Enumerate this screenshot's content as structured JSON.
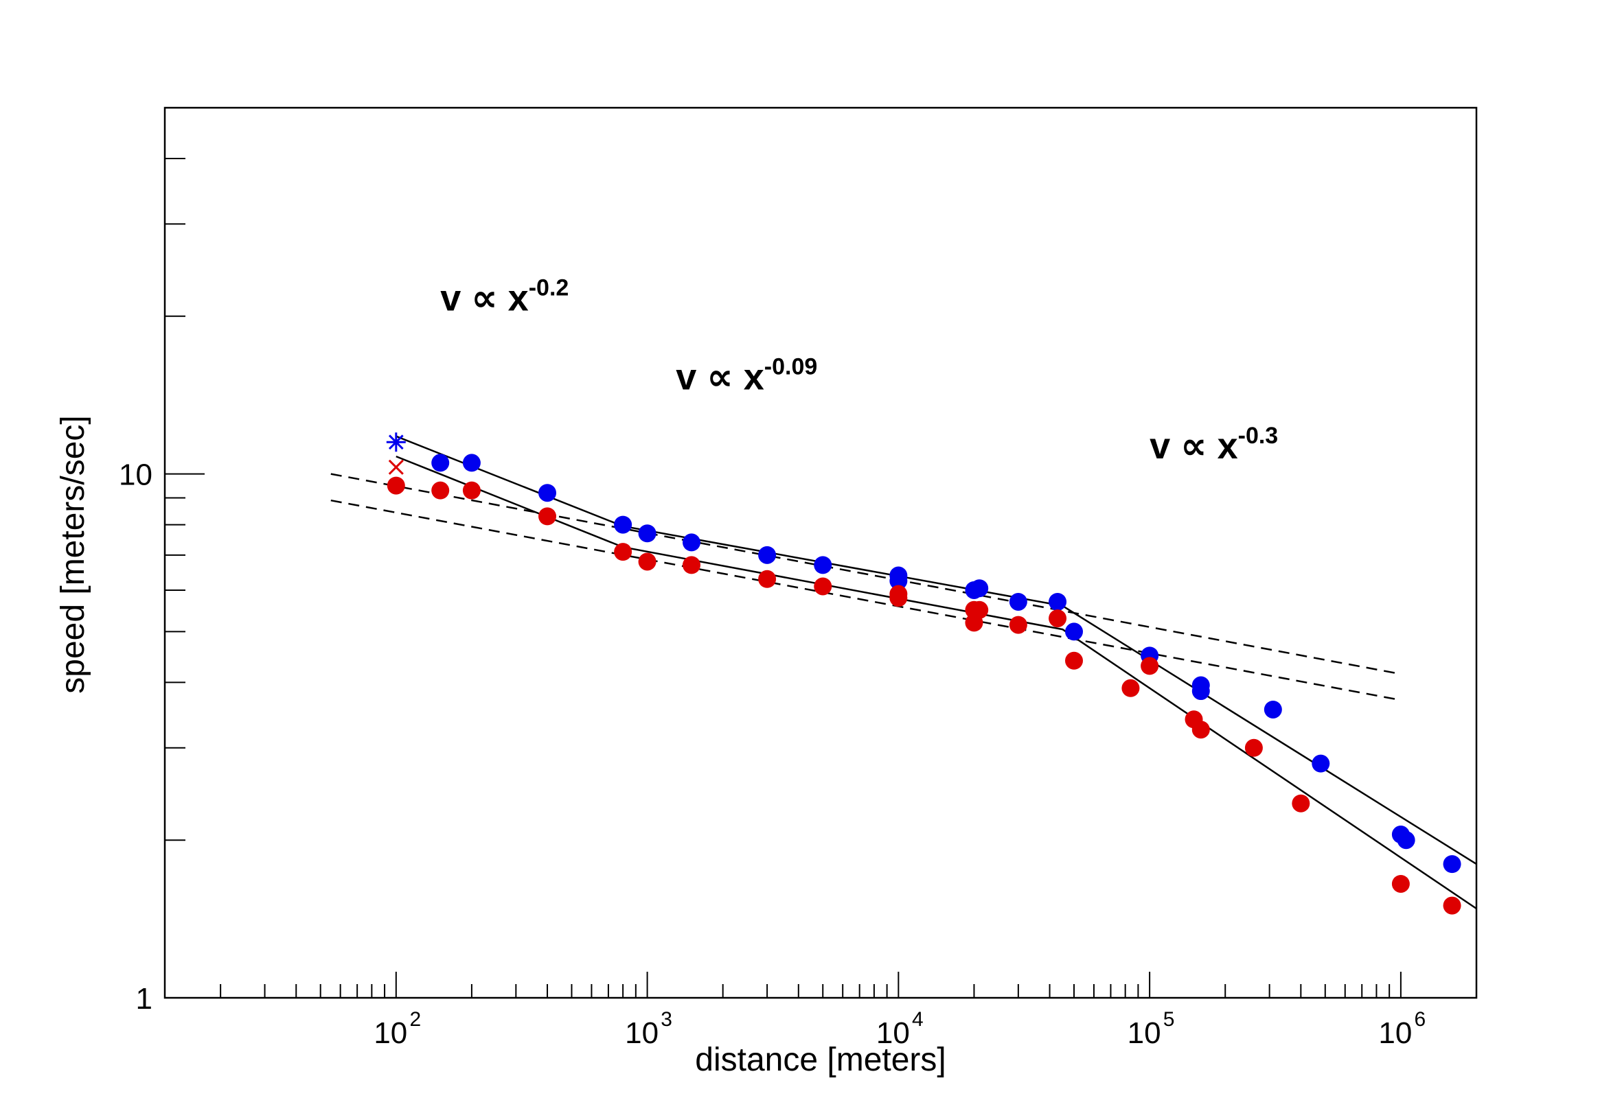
{
  "chart_data": {
    "type": "scatter",
    "title": "",
    "xlabel": "distance [meters]",
    "ylabel": "speed [meters/sec]",
    "xscale": "log",
    "yscale": "log",
    "xlim": [
      12,
      2000000
    ],
    "ylim": [
      1,
      50
    ],
    "x_ticks": [
      {
        "value": 100,
        "base": "10",
        "exp": "2"
      },
      {
        "value": 1000,
        "base": "10",
        "exp": "3"
      },
      {
        "value": 10000,
        "base": "10",
        "exp": "4"
      },
      {
        "value": 100000,
        "base": "10",
        "exp": "5"
      },
      {
        "value": 1000000,
        "base": "10",
        "exp": "6"
      }
    ],
    "y_ticks": [
      {
        "value": 1,
        "label": "1"
      },
      {
        "value": 10,
        "label": "10"
      }
    ],
    "grid": false,
    "legend": "none",
    "colors": {
      "blue": "#0000ee",
      "red": "#dd0000",
      "fit": "#000000"
    },
    "series": [
      {
        "color": "blue",
        "marker": "circle",
        "points": [
          [
            150,
            10.5
          ],
          [
            200,
            10.5
          ],
          [
            400,
            9.2
          ],
          [
            800,
            8.0
          ],
          [
            1000,
            7.7
          ],
          [
            1500,
            7.4
          ],
          [
            3000,
            7.0
          ],
          [
            5000,
            6.7
          ],
          [
            10000,
            6.4
          ],
          [
            10000,
            6.25
          ],
          [
            20000,
            6.0
          ],
          [
            21000,
            6.05
          ],
          [
            30000,
            5.7
          ],
          [
            43000,
            5.7
          ],
          [
            50000,
            5.0
          ],
          [
            100000,
            4.5
          ],
          [
            160000,
            3.95
          ],
          [
            160000,
            3.85
          ],
          [
            310000,
            3.55
          ],
          [
            480000,
            2.8
          ],
          [
            1000000,
            2.05
          ],
          [
            1050000,
            2.0
          ],
          [
            1600000,
            1.8
          ]
        ]
      },
      {
        "color": "red",
        "marker": "circle",
        "points": [
          [
            100,
            9.5
          ],
          [
            150,
            9.3
          ],
          [
            200,
            9.3
          ],
          [
            400,
            8.3
          ],
          [
            800,
            7.1
          ],
          [
            1000,
            6.8
          ],
          [
            1500,
            6.7
          ],
          [
            3000,
            6.3
          ],
          [
            5000,
            6.1
          ],
          [
            10000,
            5.8
          ],
          [
            10000,
            5.9
          ],
          [
            20000,
            5.2
          ],
          [
            20000,
            5.5
          ],
          [
            21000,
            5.5
          ],
          [
            30000,
            5.15
          ],
          [
            43000,
            5.3
          ],
          [
            50000,
            4.4
          ],
          [
            84000,
            3.9
          ],
          [
            100000,
            4.3
          ],
          [
            150000,
            3.4
          ],
          [
            160000,
            3.25
          ],
          [
            260000,
            3.0
          ],
          [
            400000,
            2.35
          ],
          [
            1000000,
            1.65
          ],
          [
            1600000,
            1.5
          ]
        ]
      },
      {
        "color": "blue",
        "marker": "star",
        "points": [
          [
            100,
            11.5
          ]
        ]
      },
      {
        "color": "red",
        "marker": "x",
        "points": [
          [
            100,
            10.3
          ]
        ]
      }
    ],
    "fit_lines": [
      {
        "style": "solid",
        "points": [
          [
            100,
            11.8
          ],
          [
            800,
            7.95
          ],
          [
            45000,
            5.6
          ],
          [
            2000000,
            1.8
          ]
        ]
      },
      {
        "style": "solid",
        "points": [
          [
            100,
            10.8
          ],
          [
            800,
            7.25
          ],
          [
            45000,
            5.05
          ],
          [
            2000000,
            1.48
          ]
        ]
      },
      {
        "style": "dashed",
        "points": [
          [
            55,
            10.0
          ],
          [
            1000000,
            4.15
          ]
        ]
      },
      {
        "style": "dashed",
        "points": [
          [
            55,
            8.9
          ],
          [
            1000000,
            3.7
          ]
        ]
      }
    ],
    "annotations": [
      {
        "text": "v ∝ x",
        "superscript": "-0.2",
        "x": 150,
        "y": 20.5
      },
      {
        "text": "v ∝ x",
        "superscript": "-0.09",
        "x": 1300,
        "y": 14.5
      },
      {
        "text": "v ∝ x",
        "superscript": "-0.3",
        "x": 100000,
        "y": 10.7
      }
    ]
  }
}
